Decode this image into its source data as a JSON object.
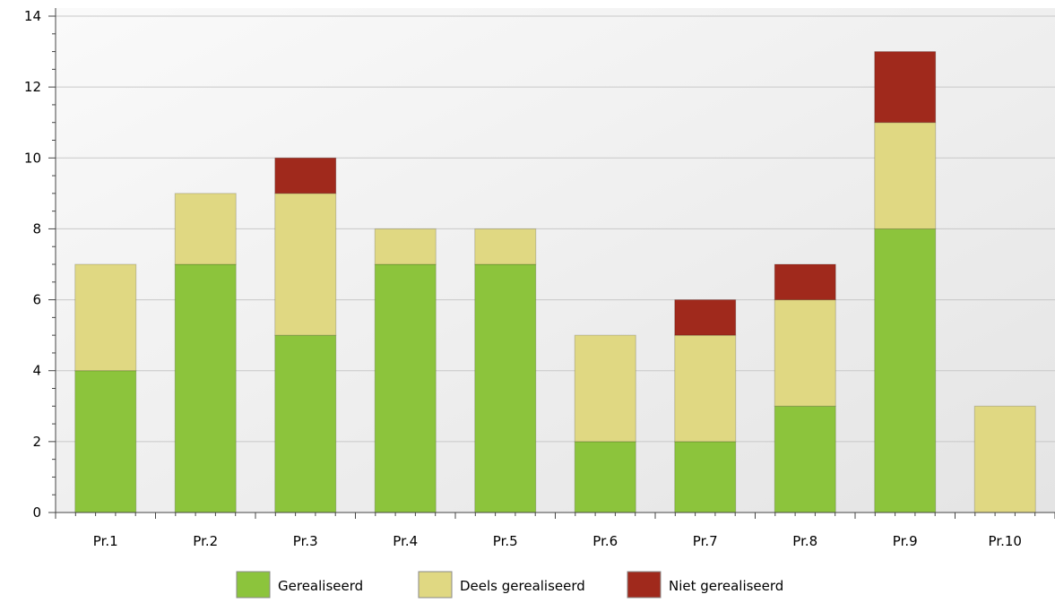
{
  "chart_data": {
    "type": "bar",
    "stacked": true,
    "title": "",
    "xlabel": "",
    "ylabel": "",
    "categories": [
      "Pr.1",
      "Pr.2",
      "Pr.3",
      "Pr.4",
      "Pr.5",
      "Pr.6",
      "Pr.7",
      "Pr.8",
      "Pr.9",
      "Pr.10"
    ],
    "series": [
      {
        "name": "Gerealiseerd",
        "color": "#8cc43c",
        "values": [
          4,
          7,
          5,
          7,
          7,
          2,
          2,
          3,
          8,
          0
        ]
      },
      {
        "name": "Deels gerealiseerd",
        "color": "#e0d882",
        "values": [
          3,
          2,
          4,
          1,
          1,
          3,
          3,
          3,
          3,
          3
        ]
      },
      {
        "name": "Niet gerealiseerd",
        "color": "#a0291c",
        "values": [
          0,
          0,
          1,
          0,
          0,
          0,
          1,
          1,
          2,
          0
        ]
      }
    ],
    "ylim": [
      0,
      14
    ],
    "yticks": [
      0,
      2,
      4,
      6,
      8,
      10,
      12,
      14
    ],
    "grid": true,
    "legend_position": "bottom-center"
  }
}
